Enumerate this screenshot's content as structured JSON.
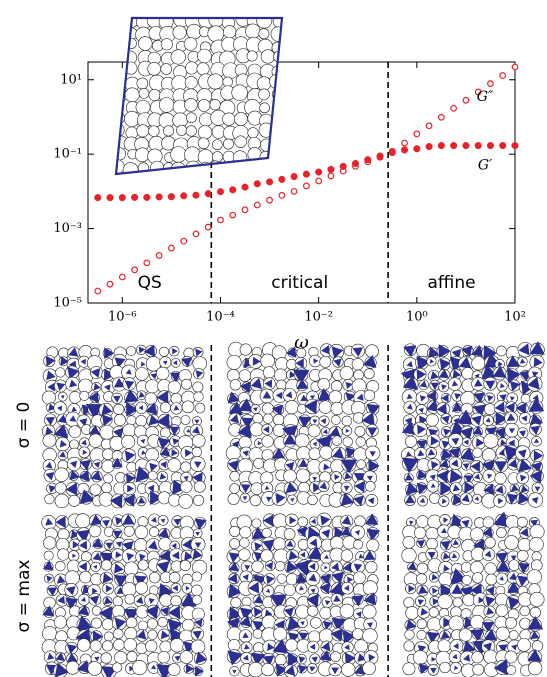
{
  "chart_data": {
    "type": "scatter",
    "x_label": "ω",
    "xlog": true,
    "ylog": true,
    "xlim": [
      2e-07,
      100
    ],
    "ylim": [
      1e-05,
      30
    ],
    "xticks": [
      {
        "value": 1e-06,
        "label": "10⁻⁶"
      },
      {
        "value": 0.0001,
        "label": "10⁻⁴"
      },
      {
        "value": 0.01,
        "label": "10⁻²"
      },
      {
        "value": 1,
        "label": "10⁰"
      },
      {
        "value": 100,
        "label": "10²"
      }
    ],
    "yticks": [
      {
        "value": 1e-05,
        "label": "10⁻⁵"
      },
      {
        "value": 0.001,
        "label": "10⁻³"
      },
      {
        "value": 0.1,
        "label": "10⁻¹"
      },
      {
        "value": 10,
        "label": "10¹"
      }
    ],
    "x": [
      3.16e-07,
      5.62e-07,
      1e-06,
      1.78e-06,
      3.16e-06,
      5.62e-06,
      1e-05,
      1.78e-05,
      3.16e-05,
      5.62e-05,
      0.0001,
      0.000178,
      0.000316,
      0.000562,
      0.001,
      0.00178,
      0.00316,
      0.00562,
      0.01,
      0.0178,
      0.0316,
      0.0562,
      0.1,
      0.178,
      0.316,
      0.562,
      1,
      1.78,
      3.16,
      5.62,
      10,
      17.8,
      31.6,
      56.2,
      100
    ],
    "series": [
      {
        "name": "G″",
        "color": "#e8222a",
        "marker": "open",
        "values": [
          2.1e-05,
          3.2e-05,
          5e-05,
          7.8e-05,
          0.00012,
          0.00019,
          0.0003,
          0.00046,
          0.00072,
          0.0011,
          0.0017,
          0.0023,
          0.0032,
          0.0043,
          0.0058,
          0.0078,
          0.01,
          0.014,
          0.019,
          0.026,
          0.035,
          0.047,
          0.062,
          0.083,
          0.12,
          0.2,
          0.35,
          0.58,
          0.98,
          1.7,
          2.8,
          4.7,
          7.9,
          13,
          22
        ]
      },
      {
        "name": "G′",
        "color": "#e8222a",
        "marker": "filled",
        "values": [
          0.0068,
          0.0068,
          0.0068,
          0.0069,
          0.0069,
          0.0071,
          0.0072,
          0.0076,
          0.0079,
          0.0087,
          0.0098,
          0.011,
          0.013,
          0.016,
          0.018,
          0.021,
          0.025,
          0.029,
          0.033,
          0.039,
          0.047,
          0.056,
          0.071,
          0.089,
          0.11,
          0.13,
          0.14,
          0.16,
          0.17,
          0.17,
          0.17,
          0.17,
          0.17,
          0.17,
          0.17
        ]
      }
    ],
    "regime_boundaries": [
      6.5e-05,
      0.26
    ],
    "regimes": [
      "QS",
      "critical",
      "affine"
    ],
    "row_labels": [
      "σ = 0",
      "σ = max"
    ]
  }
}
